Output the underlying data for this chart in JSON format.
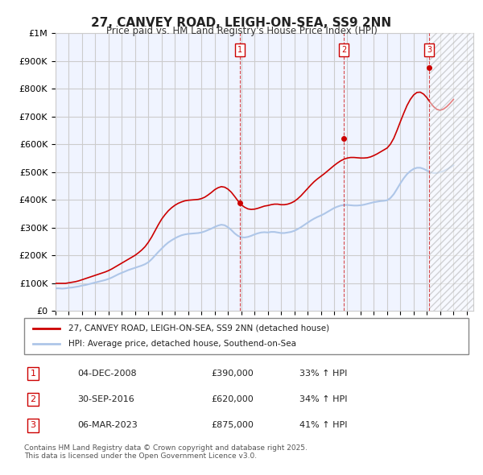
{
  "title": "27, CANVEY ROAD, LEIGH-ON-SEA, SS9 2NN",
  "subtitle": "Price paid vs. HM Land Registry's House Price Index (HPI)",
  "ylabel": "",
  "ylim": [
    0,
    1000000
  ],
  "yticks": [
    0,
    100000,
    200000,
    300000,
    400000,
    500000,
    600000,
    700000,
    800000,
    900000,
    1000000
  ],
  "ytick_labels": [
    "£0",
    "£100K",
    "£200K",
    "£300K",
    "£400K",
    "£500K",
    "£600K",
    "£700K",
    "£800K",
    "£900K",
    "£1M"
  ],
  "xlim_start": 1995.0,
  "xlim_end": 2026.5,
  "hpi_color": "#aec6e8",
  "price_color": "#cc0000",
  "transaction_color": "#cc0000",
  "grid_color": "#cccccc",
  "background_color": "#ffffff",
  "plot_background": "#f0f4ff",
  "transactions": [
    {
      "date": "04-DEC-2008",
      "price": 390000,
      "pct": "33%",
      "label": "1",
      "year": 2008.92
    },
    {
      "date": "30-SEP-2016",
      "price": 620000,
      "pct": "34%",
      "label": "2",
      "year": 2016.75
    },
    {
      "date": "06-MAR-2023",
      "price": 875000,
      "pct": "41%",
      "label": "3",
      "year": 2023.17
    }
  ],
  "legend_line1": "27, CANVEY ROAD, LEIGH-ON-SEA, SS9 2NN (detached house)",
  "legend_line2": "HPI: Average price, detached house, Southend-on-Sea",
  "footer": "Contains HM Land Registry data © Crown copyright and database right 2025.\nThis data is licensed under the Open Government Licence v3.0.",
  "hpi_years": [
    1995.0,
    1995.25,
    1995.5,
    1995.75,
    1996.0,
    1996.25,
    1996.5,
    1996.75,
    1997.0,
    1997.25,
    1997.5,
    1997.75,
    1998.0,
    1998.25,
    1998.5,
    1998.75,
    1999.0,
    1999.25,
    1999.5,
    1999.75,
    2000.0,
    2000.25,
    2000.5,
    2000.75,
    2001.0,
    2001.25,
    2001.5,
    2001.75,
    2002.0,
    2002.25,
    2002.5,
    2002.75,
    2003.0,
    2003.25,
    2003.5,
    2003.75,
    2004.0,
    2004.25,
    2004.5,
    2004.75,
    2005.0,
    2005.25,
    2005.5,
    2005.75,
    2006.0,
    2006.25,
    2006.5,
    2006.75,
    2007.0,
    2007.25,
    2007.5,
    2007.75,
    2008.0,
    2008.25,
    2008.5,
    2008.75,
    2009.0,
    2009.25,
    2009.5,
    2009.75,
    2010.0,
    2010.25,
    2010.5,
    2010.75,
    2011.0,
    2011.25,
    2011.5,
    2011.75,
    2012.0,
    2012.25,
    2012.5,
    2012.75,
    2013.0,
    2013.25,
    2013.5,
    2013.75,
    2014.0,
    2014.25,
    2014.5,
    2014.75,
    2015.0,
    2015.25,
    2015.5,
    2015.75,
    2016.0,
    2016.25,
    2016.5,
    2016.75,
    2017.0,
    2017.25,
    2017.5,
    2017.75,
    2018.0,
    2018.25,
    2018.5,
    2018.75,
    2019.0,
    2019.25,
    2019.5,
    2019.75,
    2020.0,
    2020.25,
    2020.5,
    2020.75,
    2021.0,
    2021.25,
    2021.5,
    2021.75,
    2022.0,
    2022.25,
    2022.5,
    2022.75,
    2023.0,
    2023.25,
    2023.5,
    2023.75,
    2024.0,
    2024.25,
    2024.5,
    2024.75,
    2025.0
  ],
  "hpi_values": [
    82000,
    82000,
    81000,
    82000,
    84000,
    85000,
    87000,
    89000,
    92000,
    94000,
    97000,
    100000,
    103000,
    106000,
    109000,
    112000,
    116000,
    121000,
    127000,
    133000,
    138000,
    143000,
    148000,
    152000,
    156000,
    160000,
    164000,
    169000,
    176000,
    187000,
    200000,
    213000,
    225000,
    237000,
    247000,
    255000,
    262000,
    268000,
    273000,
    276000,
    278000,
    279000,
    280000,
    281000,
    283000,
    287000,
    292000,
    297000,
    303000,
    308000,
    311000,
    309000,
    302000,
    292000,
    280000,
    271000,
    266000,
    265000,
    267000,
    271000,
    276000,
    280000,
    283000,
    284000,
    283000,
    285000,
    285000,
    283000,
    281000,
    281000,
    283000,
    285000,
    289000,
    295000,
    302000,
    310000,
    318000,
    326000,
    333000,
    339000,
    344000,
    350000,
    357000,
    364000,
    371000,
    376000,
    380000,
    382000,
    382000,
    381000,
    380000,
    380000,
    381000,
    383000,
    386000,
    389000,
    392000,
    394000,
    396000,
    397000,
    399000,
    407000,
    421000,
    440000,
    460000,
    478000,
    493000,
    504000,
    512000,
    516000,
    516000,
    512000,
    506000,
    500000,
    497000,
    497000,
    500000,
    504000,
    510000,
    517000,
    525000
  ],
  "price_years": [
    1995.0,
    1995.25,
    1995.5,
    1995.75,
    1996.0,
    1996.25,
    1996.5,
    1996.75,
    1997.0,
    1997.25,
    1997.5,
    1997.75,
    1998.0,
    1998.25,
    1998.5,
    1998.75,
    1999.0,
    1999.25,
    1999.5,
    1999.75,
    2000.0,
    2000.25,
    2000.5,
    2000.75,
    2001.0,
    2001.25,
    2001.5,
    2001.75,
    2002.0,
    2002.25,
    2002.5,
    2002.75,
    2003.0,
    2003.25,
    2003.5,
    2003.75,
    2004.0,
    2004.25,
    2004.5,
    2004.75,
    2005.0,
    2005.25,
    2005.5,
    2005.75,
    2006.0,
    2006.25,
    2006.5,
    2006.75,
    2007.0,
    2007.25,
    2007.5,
    2007.75,
    2008.0,
    2008.25,
    2008.5,
    2008.75,
    2009.0,
    2009.25,
    2009.5,
    2009.75,
    2010.0,
    2010.25,
    2010.5,
    2010.75,
    2011.0,
    2011.25,
    2011.5,
    2011.75,
    2012.0,
    2012.25,
    2012.5,
    2012.75,
    2013.0,
    2013.25,
    2013.5,
    2013.75,
    2014.0,
    2014.25,
    2014.5,
    2014.75,
    2015.0,
    2015.25,
    2015.5,
    2015.75,
    2016.0,
    2016.25,
    2016.5,
    2016.75,
    2017.0,
    2017.25,
    2017.5,
    2017.75,
    2018.0,
    2018.25,
    2018.5,
    2018.75,
    2019.0,
    2019.25,
    2019.5,
    2019.75,
    2020.0,
    2020.25,
    2020.5,
    2020.75,
    2021.0,
    2021.25,
    2021.5,
    2021.75,
    2022.0,
    2022.25,
    2022.5,
    2022.75,
    2023.0,
    2023.25,
    2023.5,
    2023.75,
    2024.0,
    2024.25,
    2024.5,
    2024.75,
    2025.0
  ],
  "price_values": [
    100000,
    100000,
    100000,
    100000,
    102000,
    104000,
    106000,
    109000,
    113000,
    117000,
    121000,
    125000,
    129000,
    133000,
    137000,
    141000,
    146000,
    152000,
    159000,
    166000,
    173000,
    180000,
    187000,
    194000,
    201000,
    210000,
    220000,
    232000,
    248000,
    267000,
    289000,
    311000,
    331000,
    347000,
    361000,
    372000,
    381000,
    388000,
    393000,
    397000,
    399000,
    400000,
    401000,
    402000,
    405000,
    410000,
    418000,
    427000,
    437000,
    444000,
    448000,
    446000,
    439000,
    428000,
    413000,
    397000,
    383000,
    374000,
    368000,
    366000,
    367000,
    370000,
    374000,
    378000,
    380000,
    383000,
    385000,
    385000,
    383000,
    383000,
    385000,
    389000,
    395000,
    404000,
    415000,
    428000,
    441000,
    454000,
    466000,
    476000,
    485000,
    494000,
    504000,
    514000,
    524000,
    533000,
    541000,
    547000,
    551000,
    553000,
    553000,
    552000,
    551000,
    551000,
    552000,
    555000,
    560000,
    566000,
    573000,
    580000,
    587000,
    601000,
    622000,
    651000,
    682000,
    712000,
    740000,
    762000,
    778000,
    787000,
    788000,
    781000,
    768000,
    751000,
    736000,
    726000,
    723000,
    727000,
    736000,
    748000,
    762000
  ]
}
